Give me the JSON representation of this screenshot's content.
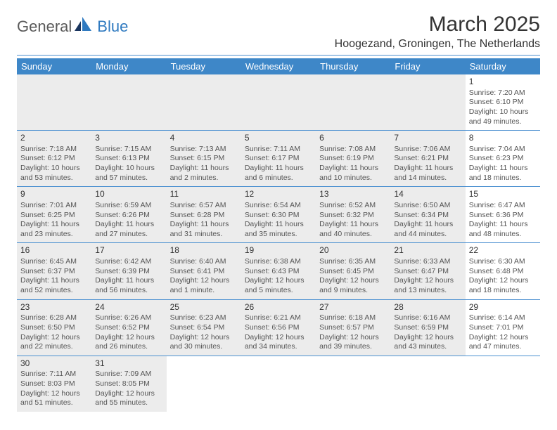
{
  "logo": {
    "text1": "General",
    "text2": "Blue"
  },
  "title": "March 2025",
  "location": "Hoogezand, Groningen, The Netherlands",
  "colors": {
    "header_bg": "#3e87c8",
    "header_text": "#ffffff",
    "divider": "#4a8fd0",
    "cell_bg": "#ececec",
    "brand_blue": "#2f7ac0",
    "brand_gray": "#5a5a5a"
  },
  "day_headers": [
    "Sunday",
    "Monday",
    "Tuesday",
    "Wednesday",
    "Thursday",
    "Friday",
    "Saturday"
  ],
  "weeks": [
    [
      {
        "blank": true,
        "bg": true
      },
      {
        "blank": true,
        "bg": true
      },
      {
        "blank": true,
        "bg": true
      },
      {
        "blank": true,
        "bg": true
      },
      {
        "blank": true,
        "bg": true
      },
      {
        "blank": true,
        "bg": true
      },
      {
        "day": "1",
        "sunrise": "Sunrise: 7:20 AM",
        "sunset": "Sunset: 6:10 PM",
        "daylight": "Daylight: 10 hours and 49 minutes."
      }
    ],
    [
      {
        "day": "2",
        "bg": true,
        "sunrise": "Sunrise: 7:18 AM",
        "sunset": "Sunset: 6:12 PM",
        "daylight": "Daylight: 10 hours and 53 minutes."
      },
      {
        "day": "3",
        "bg": true,
        "sunrise": "Sunrise: 7:15 AM",
        "sunset": "Sunset: 6:13 PM",
        "daylight": "Daylight: 10 hours and 57 minutes."
      },
      {
        "day": "4",
        "bg": true,
        "sunrise": "Sunrise: 7:13 AM",
        "sunset": "Sunset: 6:15 PM",
        "daylight": "Daylight: 11 hours and 2 minutes."
      },
      {
        "day": "5",
        "bg": true,
        "sunrise": "Sunrise: 7:11 AM",
        "sunset": "Sunset: 6:17 PM",
        "daylight": "Daylight: 11 hours and 6 minutes."
      },
      {
        "day": "6",
        "bg": true,
        "sunrise": "Sunrise: 7:08 AM",
        "sunset": "Sunset: 6:19 PM",
        "daylight": "Daylight: 11 hours and 10 minutes."
      },
      {
        "day": "7",
        "bg": true,
        "sunrise": "Sunrise: 7:06 AM",
        "sunset": "Sunset: 6:21 PM",
        "daylight": "Daylight: 11 hours and 14 minutes."
      },
      {
        "day": "8",
        "sunrise": "Sunrise: 7:04 AM",
        "sunset": "Sunset: 6:23 PM",
        "daylight": "Daylight: 11 hours and 18 minutes."
      }
    ],
    [
      {
        "day": "9",
        "bg": true,
        "sunrise": "Sunrise: 7:01 AM",
        "sunset": "Sunset: 6:25 PM",
        "daylight": "Daylight: 11 hours and 23 minutes."
      },
      {
        "day": "10",
        "bg": true,
        "sunrise": "Sunrise: 6:59 AM",
        "sunset": "Sunset: 6:26 PM",
        "daylight": "Daylight: 11 hours and 27 minutes."
      },
      {
        "day": "11",
        "bg": true,
        "sunrise": "Sunrise: 6:57 AM",
        "sunset": "Sunset: 6:28 PM",
        "daylight": "Daylight: 11 hours and 31 minutes."
      },
      {
        "day": "12",
        "bg": true,
        "sunrise": "Sunrise: 6:54 AM",
        "sunset": "Sunset: 6:30 PM",
        "daylight": "Daylight: 11 hours and 35 minutes."
      },
      {
        "day": "13",
        "bg": true,
        "sunrise": "Sunrise: 6:52 AM",
        "sunset": "Sunset: 6:32 PM",
        "daylight": "Daylight: 11 hours and 40 minutes."
      },
      {
        "day": "14",
        "bg": true,
        "sunrise": "Sunrise: 6:50 AM",
        "sunset": "Sunset: 6:34 PM",
        "daylight": "Daylight: 11 hours and 44 minutes."
      },
      {
        "day": "15",
        "sunrise": "Sunrise: 6:47 AM",
        "sunset": "Sunset: 6:36 PM",
        "daylight": "Daylight: 11 hours and 48 minutes."
      }
    ],
    [
      {
        "day": "16",
        "bg": true,
        "sunrise": "Sunrise: 6:45 AM",
        "sunset": "Sunset: 6:37 PM",
        "daylight": "Daylight: 11 hours and 52 minutes."
      },
      {
        "day": "17",
        "bg": true,
        "sunrise": "Sunrise: 6:42 AM",
        "sunset": "Sunset: 6:39 PM",
        "daylight": "Daylight: 11 hours and 56 minutes."
      },
      {
        "day": "18",
        "bg": true,
        "sunrise": "Sunrise: 6:40 AM",
        "sunset": "Sunset: 6:41 PM",
        "daylight": "Daylight: 12 hours and 1 minute."
      },
      {
        "day": "19",
        "bg": true,
        "sunrise": "Sunrise: 6:38 AM",
        "sunset": "Sunset: 6:43 PM",
        "daylight": "Daylight: 12 hours and 5 minutes."
      },
      {
        "day": "20",
        "bg": true,
        "sunrise": "Sunrise: 6:35 AM",
        "sunset": "Sunset: 6:45 PM",
        "daylight": "Daylight: 12 hours and 9 minutes."
      },
      {
        "day": "21",
        "bg": true,
        "sunrise": "Sunrise: 6:33 AM",
        "sunset": "Sunset: 6:47 PM",
        "daylight": "Daylight: 12 hours and 13 minutes."
      },
      {
        "day": "22",
        "sunrise": "Sunrise: 6:30 AM",
        "sunset": "Sunset: 6:48 PM",
        "daylight": "Daylight: 12 hours and 18 minutes."
      }
    ],
    [
      {
        "day": "23",
        "bg": true,
        "sunrise": "Sunrise: 6:28 AM",
        "sunset": "Sunset: 6:50 PM",
        "daylight": "Daylight: 12 hours and 22 minutes."
      },
      {
        "day": "24",
        "bg": true,
        "sunrise": "Sunrise: 6:26 AM",
        "sunset": "Sunset: 6:52 PM",
        "daylight": "Daylight: 12 hours and 26 minutes."
      },
      {
        "day": "25",
        "bg": true,
        "sunrise": "Sunrise: 6:23 AM",
        "sunset": "Sunset: 6:54 PM",
        "daylight": "Daylight: 12 hours and 30 minutes."
      },
      {
        "day": "26",
        "bg": true,
        "sunrise": "Sunrise: 6:21 AM",
        "sunset": "Sunset: 6:56 PM",
        "daylight": "Daylight: 12 hours and 34 minutes."
      },
      {
        "day": "27",
        "bg": true,
        "sunrise": "Sunrise: 6:18 AM",
        "sunset": "Sunset: 6:57 PM",
        "daylight": "Daylight: 12 hours and 39 minutes."
      },
      {
        "day": "28",
        "bg": true,
        "sunrise": "Sunrise: 6:16 AM",
        "sunset": "Sunset: 6:59 PM",
        "daylight": "Daylight: 12 hours and 43 minutes."
      },
      {
        "day": "29",
        "sunrise": "Sunrise: 6:14 AM",
        "sunset": "Sunset: 7:01 PM",
        "daylight": "Daylight: 12 hours and 47 minutes."
      }
    ],
    [
      {
        "day": "30",
        "bg": true,
        "sunrise": "Sunrise: 7:11 AM",
        "sunset": "Sunset: 8:03 PM",
        "daylight": "Daylight: 12 hours and 51 minutes."
      },
      {
        "day": "31",
        "bg": true,
        "sunrise": "Sunrise: 7:09 AM",
        "sunset": "Sunset: 8:05 PM",
        "daylight": "Daylight: 12 hours and 55 minutes."
      },
      {
        "blank": true
      },
      {
        "blank": true
      },
      {
        "blank": true
      },
      {
        "blank": true
      },
      {
        "blank": true
      }
    ]
  ]
}
